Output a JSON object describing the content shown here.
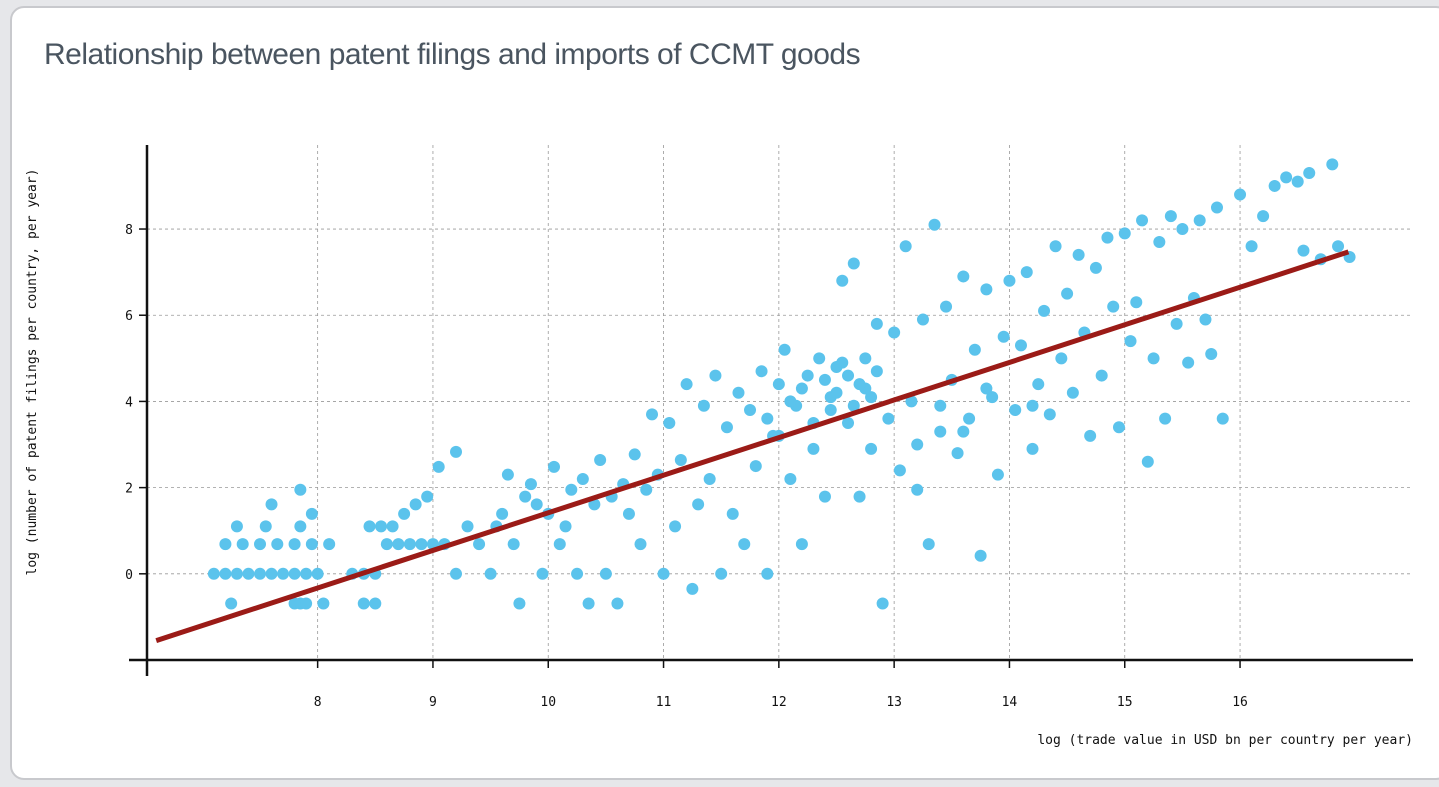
{
  "chart_data": {
    "type": "scatter",
    "title": "Relationship between patent filings and imports of CCMT goods",
    "x_label": "log (trade value in USD bn per country per year)",
    "y_label": "log (number of patent filings per country, per year)",
    "xlim": [
      6.52,
      17.5
    ],
    "ylim": [
      -2,
      9.95
    ],
    "xticks": [
      8,
      9,
      10,
      11,
      12,
      13,
      14,
      15,
      16
    ],
    "yticks": [
      0,
      2,
      4,
      6,
      8
    ],
    "grid": true,
    "series": [
      {
        "color": "#5bc3ec",
        "x": [
          7.1,
          7.2,
          7.3,
          7.4,
          7.5,
          7.6,
          7.7,
          7.8,
          7.9,
          8.0,
          7.2,
          7.35,
          7.5,
          7.65,
          7.8,
          7.95,
          8.1,
          7.3,
          7.55,
          7.85,
          7.25,
          7.8,
          7.85,
          7.9,
          8.05,
          7.6,
          7.85,
          7.95,
          8.4,
          8.5,
          8.3,
          8.4,
          8.5,
          8.6,
          8.7,
          8.8,
          8.9,
          9.0,
          9.1,
          9.2,
          8.45,
          8.55,
          8.65,
          8.75,
          8.85,
          8.95,
          9.05,
          9.2,
          9.3,
          9.4,
          9.5,
          9.55,
          9.6,
          9.65,
          9.7,
          9.75,
          9.8,
          9.85,
          9.9,
          9.95,
          10.0,
          10.05,
          10.1,
          10.15,
          10.2,
          10.25,
          10.3,
          10.35,
          10.4,
          10.45,
          10.5,
          10.55,
          10.6,
          10.65,
          10.7,
          10.75,
          10.8,
          10.85,
          10.9,
          10.95,
          11.0,
          11.05,
          11.1,
          11.15,
          11.2,
          11.25,
          11.3,
          11.35,
          11.4,
          11.45,
          11.5,
          11.55,
          11.6,
          11.65,
          11.7,
          11.75,
          11.8,
          11.85,
          11.9,
          11.95,
          12.0,
          12.05,
          12.1,
          12.15,
          12.2,
          12.25,
          12.3,
          12.35,
          12.4,
          12.45,
          12.5,
          12.55,
          12.6,
          12.65,
          12.7,
          12.75,
          12.8,
          12.85,
          12.9,
          12.95,
          13.0,
          13.05,
          13.1,
          13.15,
          13.2,
          13.25,
          13.3,
          13.35,
          13.4,
          13.45,
          13.5,
          13.55,
          13.6,
          13.65,
          13.7,
          13.75,
          13.8,
          13.85,
          13.9,
          13.95,
          14.0,
          14.05,
          14.1,
          14.15,
          14.2,
          14.25,
          14.3,
          14.35,
          14.4,
          14.45,
          14.5,
          14.55,
          14.6,
          14.65,
          14.7,
          14.75,
          14.8,
          14.85,
          14.9,
          14.95,
          15.0,
          15.05,
          15.1,
          15.15,
          15.2,
          15.25,
          15.3,
          15.35,
          15.4,
          15.45,
          15.5,
          15.55,
          15.6,
          15.65,
          15.7,
          15.75,
          15.8,
          15.85,
          16.0,
          16.1,
          16.2,
          16.3,
          16.4,
          16.5,
          16.55,
          16.6,
          16.7,
          16.8,
          16.85,
          16.95,
          12.4,
          12.45,
          12.5,
          12.55,
          12.6,
          12.65,
          12.7,
          12.75,
          12.8,
          12.85,
          11.9,
          12.0,
          12.1,
          12.2,
          12.3,
          13.2,
          13.4,
          13.6,
          13.8,
          14.2
        ],
        "y": [
          0,
          0,
          0,
          0,
          0,
          0,
          0,
          0,
          0,
          0,
          0.69,
          0.69,
          0.69,
          0.69,
          0.69,
          0.69,
          0.69,
          1.1,
          1.1,
          1.1,
          -0.69,
          -0.69,
          -0.69,
          -0.69,
          -0.69,
          1.61,
          1.95,
          1.39,
          -0.69,
          -0.69,
          0,
          0,
          0,
          0.69,
          0.69,
          0.69,
          0.69,
          0.69,
          0.69,
          0,
          1.1,
          1.1,
          1.1,
          1.39,
          1.61,
          1.79,
          2.48,
          2.83,
          1.1,
          0.69,
          0,
          1.1,
          1.39,
          2.3,
          0.69,
          -0.69,
          1.79,
          2.08,
          1.61,
          0,
          1.39,
          2.48,
          0.69,
          1.1,
          1.95,
          0,
          2.2,
          -0.69,
          1.61,
          2.64,
          0,
          1.79,
          -0.69,
          2.08,
          1.39,
          2.77,
          0.69,
          1.95,
          3.7,
          2.3,
          0,
          3.5,
          1.1,
          2.64,
          4.4,
          -0.35,
          1.61,
          3.9,
          2.2,
          4.6,
          0,
          3.4,
          1.39,
          4.2,
          0.69,
          3.8,
          2.5,
          4.7,
          0,
          3.2,
          4.4,
          5.2,
          2.2,
          3.9,
          0.69,
          4.6,
          2.9,
          5.0,
          1.79,
          4.1,
          4.8,
          6.8,
          3.5,
          7.2,
          1.79,
          4.3,
          2.9,
          5.8,
          -0.69,
          3.6,
          5.6,
          2.4,
          7.6,
          4.0,
          1.95,
          5.9,
          0.69,
          8.1,
          3.3,
          6.2,
          4.5,
          2.8,
          6.9,
          3.6,
          5.2,
          0.42,
          6.6,
          4.1,
          2.3,
          5.5,
          6.8,
          3.8,
          5.3,
          7.0,
          2.9,
          4.4,
          6.1,
          3.7,
          7.6,
          5.0,
          6.5,
          4.2,
          7.4,
          5.6,
          3.2,
          7.1,
          4.6,
          7.8,
          6.2,
          3.4,
          7.9,
          5.4,
          6.3,
          8.2,
          2.6,
          5.0,
          7.7,
          3.6,
          8.3,
          5.8,
          8.0,
          4.9,
          6.4,
          8.2,
          5.9,
          5.1,
          8.5,
          3.6,
          8.8,
          7.6,
          8.3,
          9.0,
          9.2,
          9.1,
          7.5,
          9.3,
          7.3,
          9.5,
          7.6,
          7.35,
          4.5,
          3.8,
          4.2,
          4.9,
          4.6,
          3.9,
          4.4,
          5.0,
          4.1,
          4.7,
          3.6,
          3.2,
          4.0,
          4.3,
          3.5,
          3.0,
          3.9,
          3.3,
          4.3,
          3.9
        ]
      }
    ],
    "trend_line": {
      "color": "#9b1b17",
      "x": [
        6.6,
        16.94
      ],
      "y": [
        -1.55,
        7.47
      ]
    }
  }
}
